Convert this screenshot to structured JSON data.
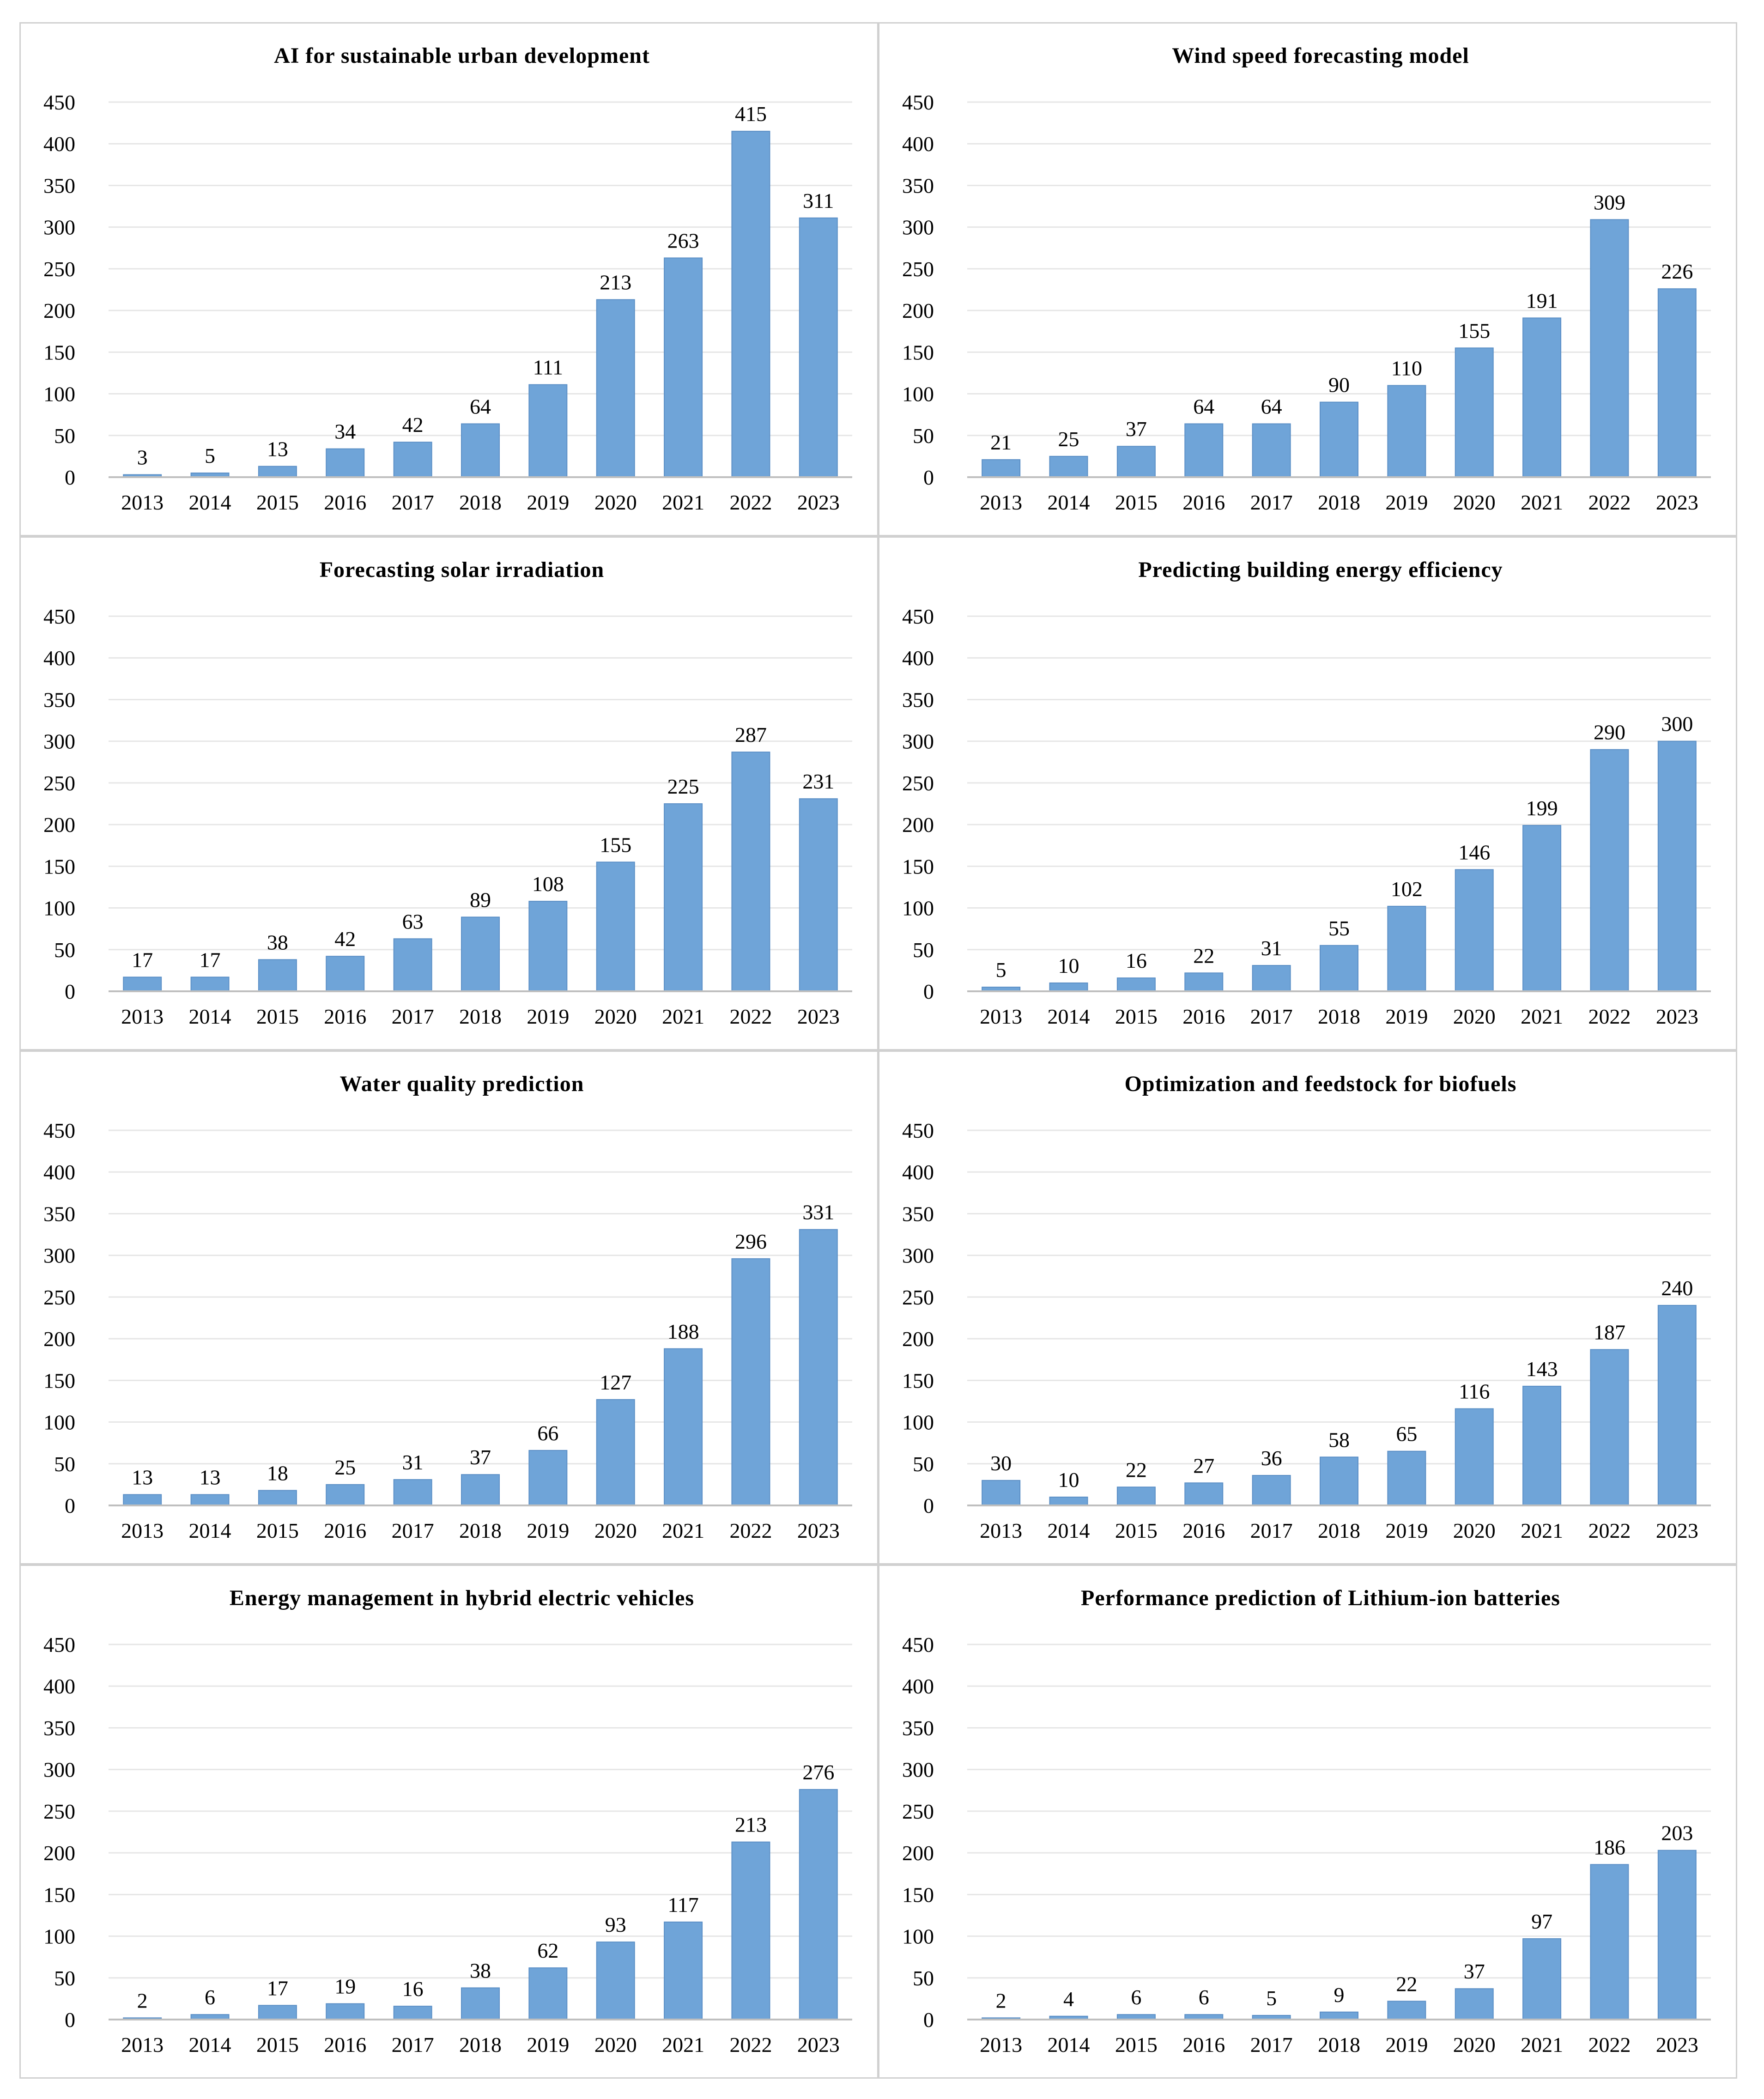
{
  "colors": {
    "bar": "#6fa4d8",
    "bar_edge": "#5b8fc6",
    "grid": "#e6e6e6",
    "border": "#d0d0d0"
  },
  "chart_data": [
    {
      "type": "bar",
      "title": "AI for sustainable urban development",
      "categories": [
        "2013",
        "2014",
        "2015",
        "2016",
        "2017",
        "2018",
        "2019",
        "2020",
        "2021",
        "2022",
        "2023"
      ],
      "values": [
        3,
        5,
        13,
        34,
        42,
        64,
        111,
        213,
        263,
        415,
        311
      ],
      "yticks": [
        "0",
        "50",
        "100",
        "150",
        "200",
        "250",
        "300",
        "350",
        "400",
        "450"
      ],
      "ylim": [
        0,
        450
      ],
      "xlabel": "",
      "ylabel": "",
      "grid": true
    },
    {
      "type": "bar",
      "title": "Wind speed forecasting model",
      "categories": [
        "2013",
        "2014",
        "2015",
        "2016",
        "2017",
        "2018",
        "2019",
        "2020",
        "2021",
        "2022",
        "2023"
      ],
      "values": [
        21,
        25,
        37,
        64,
        64,
        90,
        110,
        155,
        191,
        309,
        226
      ],
      "yticks": [
        "0",
        "50",
        "100",
        "150",
        "200",
        "250",
        "300",
        "350",
        "400",
        "450"
      ],
      "ylim": [
        0,
        450
      ],
      "xlabel": "",
      "ylabel": "",
      "grid": true
    },
    {
      "type": "bar",
      "title": "Forecasting solar irradiation",
      "categories": [
        "2013",
        "2014",
        "2015",
        "2016",
        "2017",
        "2018",
        "2019",
        "2020",
        "2021",
        "2022",
        "2023"
      ],
      "values": [
        17,
        17,
        38,
        42,
        63,
        89,
        108,
        155,
        225,
        287,
        231
      ],
      "yticks": [
        "0",
        "50",
        "100",
        "150",
        "200",
        "250",
        "300",
        "350",
        "400",
        "450"
      ],
      "ylim": [
        0,
        450
      ],
      "xlabel": "",
      "ylabel": "",
      "grid": true
    },
    {
      "type": "bar",
      "title": "Predicting building energy efficiency",
      "categories": [
        "2013",
        "2014",
        "2015",
        "2016",
        "2017",
        "2018",
        "2019",
        "2020",
        "2021",
        "2022",
        "2023"
      ],
      "values": [
        5,
        10,
        16,
        22,
        31,
        55,
        102,
        146,
        199,
        290,
        300
      ],
      "yticks": [
        "0",
        "50",
        "100",
        "150",
        "200",
        "250",
        "300",
        "350",
        "400",
        "450"
      ],
      "ylim": [
        0,
        450
      ],
      "xlabel": "",
      "ylabel": "",
      "grid": true
    },
    {
      "type": "bar",
      "title": "Water quality prediction",
      "categories": [
        "2013",
        "2014",
        "2015",
        "2016",
        "2017",
        "2018",
        "2019",
        "2020",
        "2021",
        "2022",
        "2023"
      ],
      "values": [
        13,
        13,
        18,
        25,
        31,
        37,
        66,
        127,
        188,
        296,
        331
      ],
      "yticks": [
        "0",
        "50",
        "100",
        "150",
        "200",
        "250",
        "300",
        "350",
        "400",
        "450"
      ],
      "ylim": [
        0,
        450
      ],
      "xlabel": "",
      "ylabel": "",
      "grid": true
    },
    {
      "type": "bar",
      "title": "Optimization and feedstock for biofuels",
      "categories": [
        "2013",
        "2014",
        "2015",
        "2016",
        "2017",
        "2018",
        "2019",
        "2020",
        "2021",
        "2022",
        "2023"
      ],
      "values": [
        30,
        10,
        22,
        27,
        36,
        58,
        65,
        116,
        143,
        187,
        240
      ],
      "yticks": [
        "0",
        "50",
        "100",
        "150",
        "200",
        "250",
        "300",
        "350",
        "400",
        "450"
      ],
      "ylim": [
        0,
        450
      ],
      "xlabel": "",
      "ylabel": "",
      "grid": true
    },
    {
      "type": "bar",
      "title": "Energy management in hybrid electric vehicles",
      "categories": [
        "2013",
        "2014",
        "2015",
        "2016",
        "2017",
        "2018",
        "2019",
        "2020",
        "2021",
        "2022",
        "2023"
      ],
      "values": [
        2,
        6,
        17,
        19,
        16,
        38,
        62,
        93,
        117,
        213,
        276
      ],
      "yticks": [
        "0",
        "50",
        "100",
        "150",
        "200",
        "250",
        "300",
        "350",
        "400",
        "450"
      ],
      "ylim": [
        0,
        450
      ],
      "xlabel": "",
      "ylabel": "",
      "grid": true
    },
    {
      "type": "bar",
      "title": "Performance prediction of Lithium-ion batteries",
      "categories": [
        "2013",
        "2014",
        "2015",
        "2016",
        "2017",
        "2018",
        "2019",
        "2020",
        "2021",
        "2022",
        "2023"
      ],
      "values": [
        2,
        4,
        6,
        6,
        5,
        9,
        22,
        37,
        97,
        186,
        203
      ],
      "yticks": [
        "0",
        "50",
        "100",
        "150",
        "200",
        "250",
        "300",
        "350",
        "400",
        "450"
      ],
      "ylim": [
        0,
        450
      ],
      "xlabel": "",
      "ylabel": "",
      "grid": true
    }
  ]
}
